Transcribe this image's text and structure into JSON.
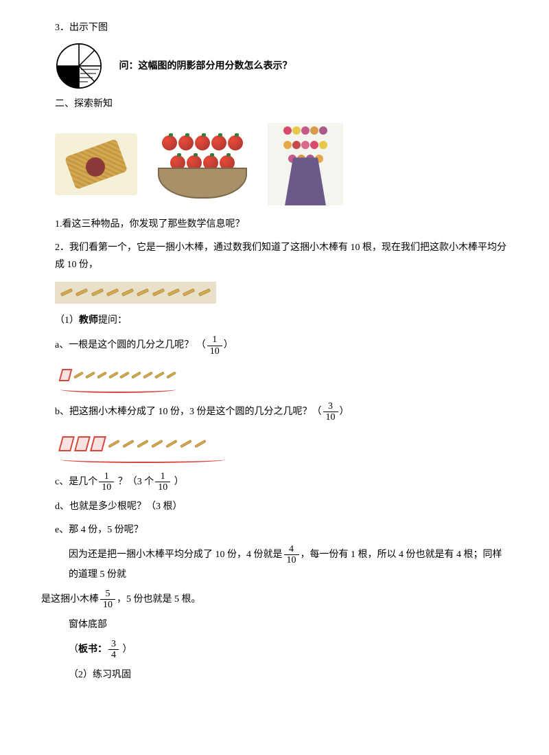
{
  "section3": {
    "title": "3．出示下图",
    "question": "问：这幅图的阴影部分用分数怎么表示？"
  },
  "circle": {
    "stroke": "#000000",
    "fill_shaded": "#000000",
    "fill_hatched": "#ffffff",
    "fill_white": "#ffffff"
  },
  "section_explore": "二、探索新知",
  "images": {
    "bundle_bg": "#f5f0d8",
    "basket_bg": "#a89068",
    "apple_color": "#e74c3c",
    "bouquet_wrap": "#6a5a8a",
    "flower_colors": [
      "#d84a6a",
      "#e8c84a",
      "#c85a8a",
      "#d89a4a",
      "#a85a8a",
      "#e8a84a",
      "#c84a4a",
      "#d86a8a"
    ]
  },
  "q1": "1.看这三种物品，你发现了那些数学信息呢？",
  "q2": "2．我们看第一个，它是一捆小木棒，通过数我们知道了这捆小木棒有 10 根，现在我们把这款小木棒平均分成 10 份，",
  "teacher_q": {
    "label_prefix": "（1）",
    "label_bold": "教师",
    "label_suffix": "提问："
  },
  "qa": {
    "a_text": "a、一根是这个圆的几分之几呢？ （",
    "a_frac_n": "1",
    "a_frac_d": "10",
    "a_close": "）"
  },
  "qb": {
    "b_text": "b、把这捆小木棒分成了 10 份，3 份是这个圆的几分之几呢？（",
    "b_frac_n": "3",
    "b_frac_d": "10",
    "b_close": "）"
  },
  "qc": {
    "c_text1": "c、是几个",
    "c_frac1_n": "1",
    "c_frac1_d": "10",
    "c_text2": " ？（3 个",
    "c_frac2_n": "1",
    "c_frac2_d": "10",
    "c_text3": " ）"
  },
  "qd": "d、也就是多少根呢？（3 根）",
  "qe": "e、那 4 份，5 份呢？",
  "explain": {
    "part1": "因为还是把一捆小木棒平均分成了 10 份，4 份就是",
    "frac1_n": "4",
    "frac1_d": "10",
    "part2": "，每一份有 1 根，所以 4 份也就是有 4 根；同样的道理 5 份就",
    "part3": "是这捆小木棒",
    "frac2_n": "5",
    "frac2_d": "10",
    "part4": "，5 份也就是 5 根。"
  },
  "window_bottom": "窗体底部",
  "board": {
    "prefix": "（",
    "bold": "板书：",
    "frac_n": "3",
    "frac_d": "4",
    "suffix": " ）"
  },
  "practice": "（2）练习巩固",
  "sticks": {
    "count": 10,
    "bg": "#e8e0c8",
    "stick_color": "#d4a955",
    "red_outline": "#d8453a"
  }
}
